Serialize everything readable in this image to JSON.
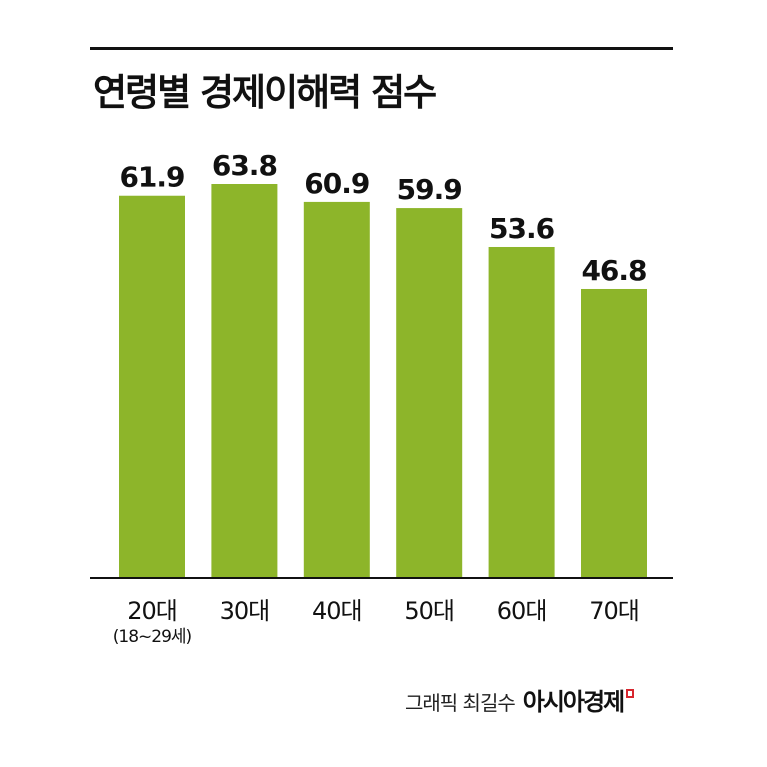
{
  "chart_data": {
    "type": "bar",
    "title": "연령별 경제이해력 점수",
    "categories": [
      "20대",
      "30대",
      "40대",
      "50대",
      "60대",
      "70대"
    ],
    "category_sublabels": [
      "(18~29세)",
      "",
      "",
      "",
      "",
      ""
    ],
    "values": [
      61.9,
      63.8,
      60.9,
      59.9,
      53.6,
      46.8
    ],
    "value_labels": [
      "61.9",
      "63.8",
      "60.9",
      "59.9",
      "53.6",
      "46.8"
    ],
    "ylim": [
      0,
      64.5
    ],
    "grid": false,
    "bar_color": "#8db52a"
  },
  "credit": {
    "label": "그래픽 최길수",
    "brand": "아시아경제"
  }
}
